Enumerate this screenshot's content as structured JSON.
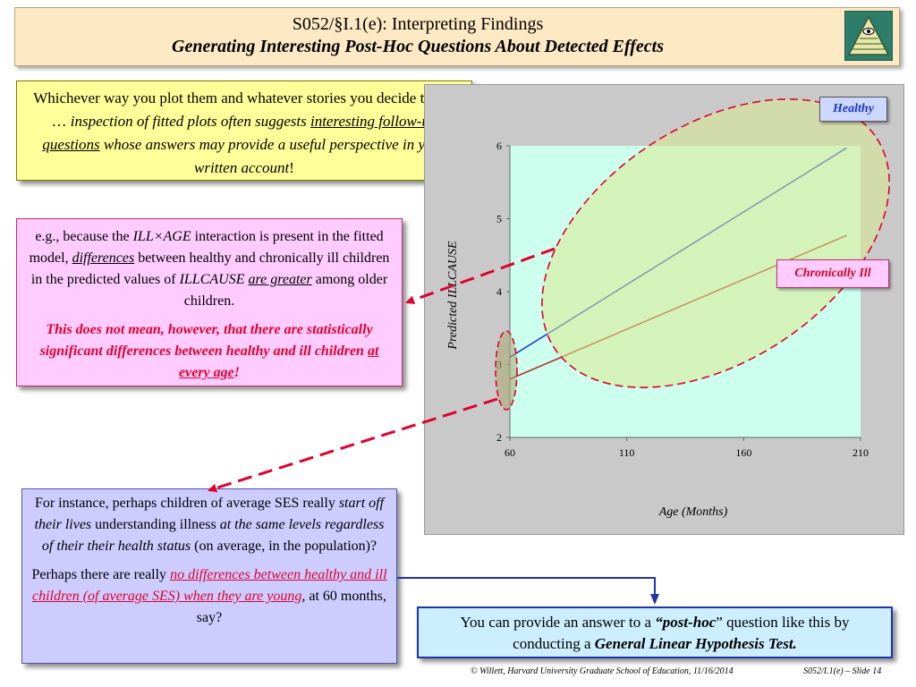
{
  "header": {
    "line1": "S052/§I.1(e): Interpreting Findings",
    "line2": "Generating Interesting Post-Hoc Questions About Detected Effects"
  },
  "yellow_box": {
    "t1": "Whichever way you plot them and whatever stories you decide to tell … ",
    "t2": "inspection of fitted plots often suggests",
    "t3": "interesting follow-up questions",
    "t4": " whose answers may provide a useful perspective in your written account",
    "t5": "!"
  },
  "pink_box": {
    "t1": "e.g., because the ",
    "t2": "ILL×AGE",
    "t3": " interaction is present in the fitted model, ",
    "t4": "differences",
    "t5": " between healthy and chronically ill children in the predicted values of ",
    "t6": "ILLCAUSE",
    "t7": " ",
    "t8": "are greater",
    "t9": " among older children.",
    "warn1": "This does not mean, however, that there are statistically significant differences between healthy and ill children ",
    "warn2": "at every age",
    "warn3": "!"
  },
  "lavender_box": {
    "t1": "For instance, perhaps children of average SES really ",
    "t2": "start off their lives",
    "t3": " understanding illness ",
    "t4": "at the same levels regardless of their their health status",
    "t5": " (on average, in the population)?",
    "p2a": "Perhaps there are really ",
    "p2b": "no differences between healthy and ill children  (of average SES) when they are young",
    "p2c": ", at 60 months, say?"
  },
  "blue_box": {
    "t1": "You can provide an answer to a ",
    "t2": "“post-hoc",
    "t3": "” question like this by conducting a ",
    "t4": "General Linear Hypothesis Test."
  },
  "chart_data": {
    "type": "line",
    "xlabel": "Age (Months)",
    "ylabel": "Predicted ILLCAUSE",
    "xlim": [
      60,
      210
    ],
    "ylim": [
      2,
      6
    ],
    "x_ticks": [
      60,
      110,
      160,
      210
    ],
    "y_ticks": [
      2,
      3,
      4,
      5,
      6
    ],
    "series": [
      {
        "name": "Healthy",
        "x": [
          60,
          204
        ],
        "y": [
          3.1,
          5.97
        ],
        "color": "#1a35c9"
      },
      {
        "name": "Chronically Ill",
        "x": [
          60,
          204
        ],
        "y": [
          2.8,
          4.77
        ],
        "color": "#b5241c"
      }
    ],
    "plot_background": "#ccffee",
    "grid": false
  },
  "footer": {
    "left": "© Willett, Harvard University Graduate School of Education, 11/16/2014",
    "right": "S052/I.1(e) – Slide 14"
  }
}
